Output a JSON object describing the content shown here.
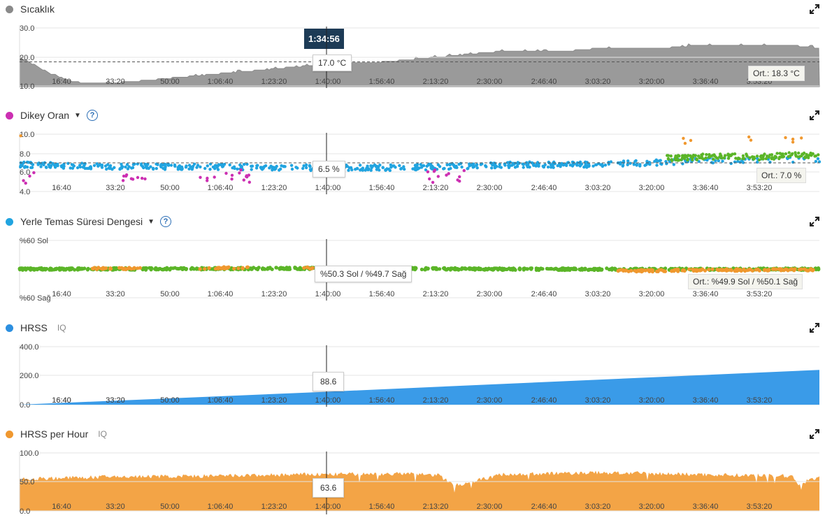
{
  "cursor_time": "1:34:56",
  "x_ticks": [
    "16:40",
    "33:20",
    "50:00",
    "1:06:40",
    "1:23:20",
    "1:40:00",
    "1:56:40",
    "2:13:20",
    "2:30:00",
    "2:46:40",
    "3:03:20",
    "3:20:00",
    "3:36:40",
    "3:53:20"
  ],
  "panels": [
    {
      "id": "temperature",
      "title": "Sıcaklık",
      "dot_color": "#8a8a8a",
      "has_caret": false,
      "has_help": false,
      "iq": "",
      "y_ticks": [
        "30.0",
        "20.0",
        "10.0"
      ],
      "cursor_value": "17.0 °C",
      "average_label": "Ort.: 18.3 °C"
    },
    {
      "id": "vertical-ratio",
      "title": "Dikey Oran",
      "dot_color": "#cc2fb2",
      "has_caret": true,
      "has_help": true,
      "iq": "",
      "y_ticks": [
        "10.0",
        "8.0",
        "6.0",
        "4.0"
      ],
      "cursor_value": "6.5 %",
      "average_label": "Ort.: 7.0 %"
    },
    {
      "id": "gct-balance",
      "title": "Yerle Temas Süresi Dengesi",
      "dot_color": "#21a4e0",
      "has_caret": true,
      "has_help": true,
      "iq": "",
      "y_ticks": [
        "%60 Sol",
        "%60 Sağ"
      ],
      "cursor_value": "%50.3 Sol / %49.7 Sağ",
      "average_label": "Ort.: %49.9 Sol / %50.1 Sağ"
    },
    {
      "id": "hrss",
      "title": "HRSS",
      "dot_color": "#2c8fe0",
      "has_caret": false,
      "has_help": false,
      "iq": "IQ",
      "y_ticks": [
        "400.0",
        "200.0",
        "0.0"
      ],
      "cursor_value": "88.6",
      "average_label": ""
    },
    {
      "id": "hrss-per-hour",
      "title": "HRSS per Hour",
      "dot_color": "#f0982f",
      "has_caret": false,
      "has_help": false,
      "iq": "IQ",
      "y_ticks": [
        "100.0",
        "50.0",
        "0.0"
      ],
      "cursor_value": "63.6",
      "average_label": ""
    }
  ],
  "chart_data": [
    {
      "type": "area",
      "title": "Sıcaklık",
      "xlabel": "",
      "ylabel": "",
      "x_unit": "elapsed time (s)",
      "ylim": [
        10,
        30
      ],
      "x": [
        0,
        300,
        600,
        900,
        1200,
        1800,
        2400,
        3000,
        3600,
        4200,
        4800,
        5400,
        6000,
        6600,
        7200,
        7800,
        8400,
        9000,
        9600,
        10200,
        10800,
        11400,
        12000,
        12600,
        13200,
        13800,
        14400,
        14900
      ],
      "values": [
        20,
        17,
        14,
        12,
        11,
        11,
        12,
        13,
        14,
        15,
        16,
        17,
        18,
        18,
        19,
        20,
        21,
        22,
        22,
        22,
        23,
        23,
        23,
        24,
        24,
        24,
        24,
        23
      ],
      "average": 18.3,
      "cursor_value": 17.0,
      "grid": true
    },
    {
      "type": "scatter",
      "title": "Dikey Oran",
      "xlabel": "",
      "ylabel": "",
      "ylim": [
        4,
        10
      ],
      "series": [
        {
          "color": "#21a4e0",
          "x": [
            0,
            1800,
            3600,
            5400,
            7200,
            9000,
            10800,
            12600,
            14400
          ],
          "values": [
            6.8,
            6.6,
            6.6,
            6.5,
            6.5,
            6.8,
            6.8,
            7.2,
            7.3
          ]
        },
        {
          "color": "#5bb528",
          "x": [
            12000,
            12600,
            13200,
            13800,
            14400,
            14900
          ],
          "values": [
            7.5,
            7.6,
            7.7,
            7.6,
            7.8,
            7.7
          ]
        },
        {
          "color": "#cc2fb2",
          "x": [
            300,
            2100,
            3600,
            4200,
            7800,
            8100
          ],
          "values": [
            5.2,
            6.1,
            5.3,
            5.6,
            5.5,
            5.1
          ]
        },
        {
          "color": "#f0982f",
          "x": [
            0,
            12300,
            13500,
            14500
          ],
          "values": [
            9.6,
            9.4,
            9.2,
            9.5
          ]
        }
      ],
      "average": 7.0,
      "cursor_value": 6.5
    },
    {
      "type": "scatter",
      "title": "Yerle Temas Süresi Dengesi",
      "xlabel": "",
      "ylabel": "",
      "ylim": [
        40,
        60
      ],
      "series": [
        {
          "color": "#5bb528",
          "x": [
            0,
            3000,
            6000,
            9000,
            12000,
            14900
          ],
          "values": [
            50.0,
            50.1,
            50.3,
            50.0,
            49.9,
            50.0
          ]
        },
        {
          "color": "#f0982f",
          "x": [
            1800,
            3800,
            5600,
            11600,
            12400,
            13400,
            14600
          ],
          "values": [
            50.2,
            50.4,
            50.3,
            49.4,
            49.6,
            49.7,
            49.8
          ]
        }
      ],
      "average_left_pct": 49.9,
      "average_right_pct": 50.1,
      "cursor_left_pct": 50.3,
      "cursor_right_pct": 49.7
    },
    {
      "type": "area",
      "title": "HRSS",
      "xlabel": "",
      "ylabel": "",
      "ylim": [
        0,
        400
      ],
      "x": [
        0,
        5696,
        14900
      ],
      "values": [
        0,
        88.6,
        240
      ],
      "cursor_value": 88.6
    },
    {
      "type": "area",
      "title": "HRSS per Hour",
      "xlabel": "",
      "ylabel": "",
      "ylim": [
        0,
        100
      ],
      "x": [
        0,
        1800,
        3600,
        5400,
        7200,
        7800,
        8100,
        9000,
        10800,
        12600,
        14400,
        14500,
        14900
      ],
      "values": [
        55,
        59,
        60,
        63,
        64,
        62,
        44,
        63,
        66,
        63,
        60,
        45,
        60
      ],
      "cursor_value": 63.6
    }
  ]
}
